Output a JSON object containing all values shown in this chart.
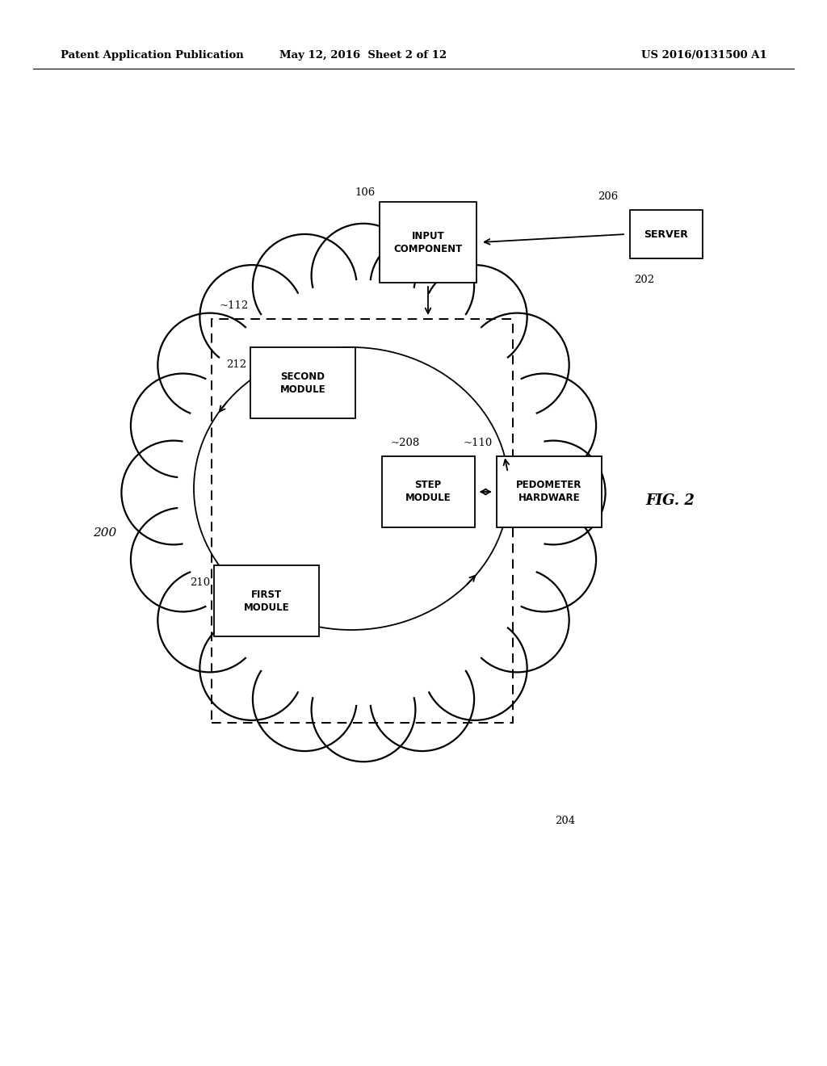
{
  "bg_color": "#ffffff",
  "header_left": "Patent Application Publication",
  "header_center": "May 12, 2016  Sheet 2 of 12",
  "header_right": "US 2016/0131500 A1",
  "fig_label": "FIG. 2",
  "label_200": "200",
  "label_204": "204",
  "label_206": "206",
  "label_202": "202",
  "label_110": "~110",
  "label_112": "~112",
  "label_106": "106",
  "label_208": "~208",
  "label_210": "210",
  "label_212": "212"
}
